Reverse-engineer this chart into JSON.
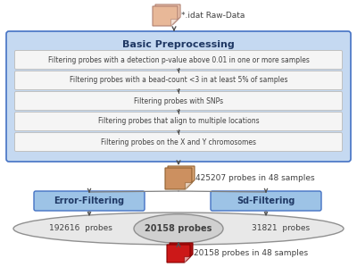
{
  "bg_color": "#ffffff",
  "preprocessing_label": "Basic Preprocessing",
  "preprocessing_bg": "#c5d9f1",
  "preprocessing_border": "#4472c4",
  "filter_steps": [
    "Filtering probes with a detection p-value above 0.01 in one or more samples",
    "Filtering probes with a bead-count <3 in at least 5% of samples",
    "Filtering probes with SNPs",
    "Filtering probes that align to multiple locations",
    "Filtering probes on the X and Y chromosomes"
  ],
  "filter_box_bg": "#f5f5f5",
  "filter_box_border": "#c0c0c0",
  "raw_data_label": "*.idat Raw-Data",
  "raw_data_color1": "#f0c8b0",
  "raw_data_color2": "#e8b898",
  "intermediate_label": "425207 probes in 48 samples",
  "intermediate_color1": "#dda878",
  "intermediate_color2": "#cc9060",
  "error_filter_label": "Error-Filtering",
  "sd_filter_label": "Sd-Filtering",
  "filter_header_bg": "#9dc3e6",
  "filter_header_border": "#4472c4",
  "ellipse_left_label": "192616  probes",
  "ellipse_center_label": "20158 probes",
  "ellipse_right_label": "31821  probes",
  "ellipse_bg": "#e8e8e8",
  "ellipse_border": "#909090",
  "ellipse_center_bg": "#d0d0d0",
  "output_label": "20158 probes in 48 samples",
  "output_color1": "#aa1010",
  "output_color2": "#cc1818",
  "arrow_color": "#505050",
  "text_color": "#404040",
  "header_text_color": "#1f3864",
  "line_color": "#808080"
}
